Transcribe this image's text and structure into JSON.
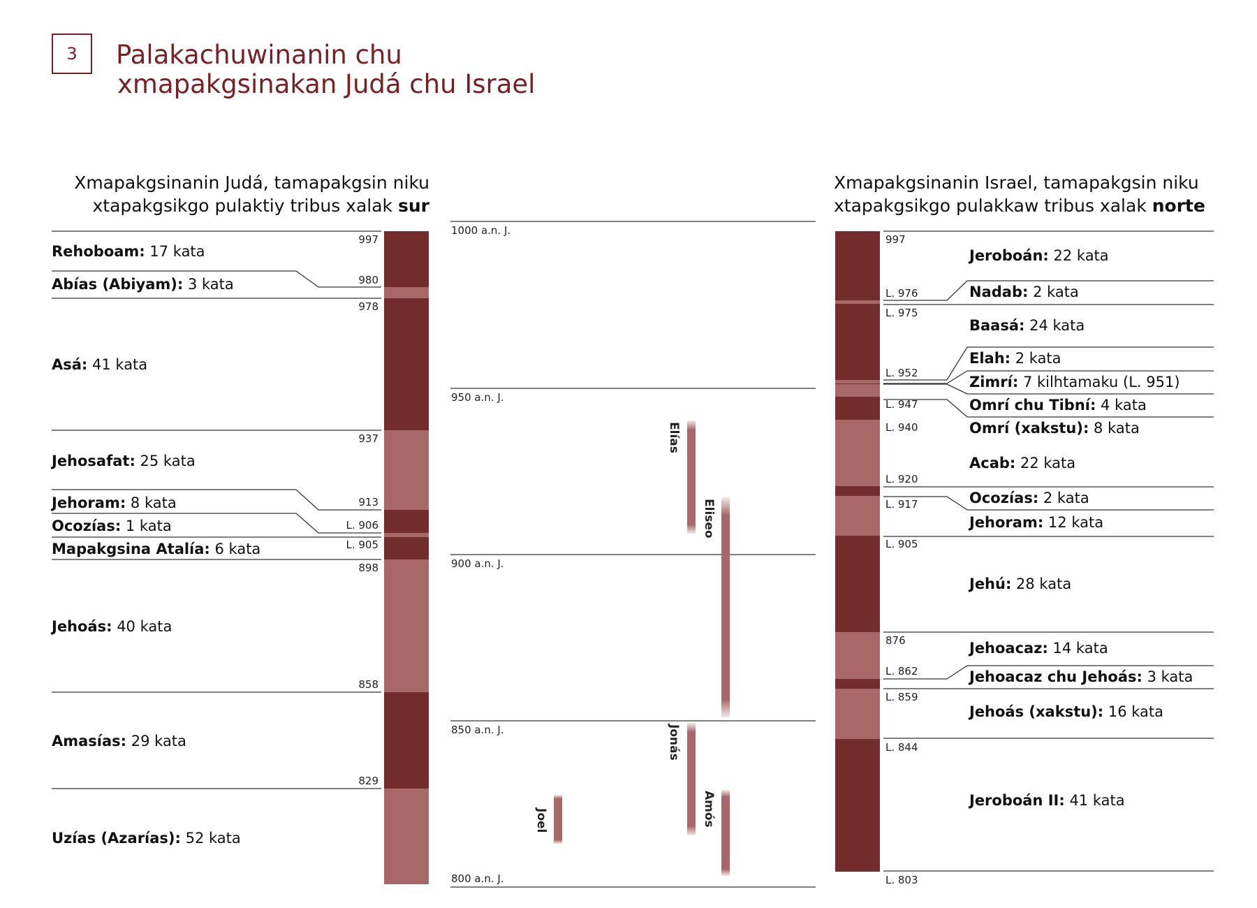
{
  "header": {
    "number": "3",
    "title_line1": "Palakachuwinanin chu",
    "title_line2": "xmapakgsinakan Judá chu Israel"
  },
  "juda": {
    "heading_line1": "Xmapakgsinanin Judá, tamapakgsin niku",
    "heading_line2_prefix": "xtapakgsikgo pulaktiy tribus xalak ",
    "heading_line2_bold": "sur",
    "years": [
      "997",
      "980",
      "978",
      "937",
      "913",
      "L. 906",
      "L. 905",
      "898",
      "858",
      "829"
    ],
    "kings": [
      {
        "name": "Rehoboam:",
        "reign": " 17 kata"
      },
      {
        "name": "Abías (Abiyam):",
        "reign": " 3 kata"
      },
      {
        "name": "Asá:",
        "reign": " 41 kata"
      },
      {
        "name": "Jehosafat:",
        "reign": " 25 kata"
      },
      {
        "name": "Jehoram:",
        "reign": " 8 kata"
      },
      {
        "name": "Ocozías:",
        "reign": " 1 kata"
      },
      {
        "name": "Mapakgsina Atalía:",
        "reign": " 6 kata"
      },
      {
        "name": "Jehoás:",
        "reign": " 40 kata"
      },
      {
        "name": "Amasías:",
        "reign": " 29 kata"
      },
      {
        "name": "Uzías (Azarías):",
        "reign": " 52 kata"
      }
    ]
  },
  "israel": {
    "heading_line1": "Xmapakgsinanin Israel, tamapakgsin niku",
    "heading_line2_prefix": "xtapakgsikgo pulakkaw tribus xalak ",
    "heading_line2_bold": "norte",
    "years": [
      "997",
      "L. 976",
      "L. 975",
      "L. 952",
      "L. 947",
      "L. 940",
      "L. 920",
      "L. 917",
      "L. 905",
      "876",
      "L. 862",
      "L. 859",
      "L. 844",
      "L. 803"
    ],
    "kings": [
      {
        "name": "Jeroboán:",
        "reign": " 22 kata"
      },
      {
        "name": "Nadab:",
        "reign": " 2 kata"
      },
      {
        "name": "Baasá:",
        "reign": " 24 kata"
      },
      {
        "name": "Elah:",
        "reign": " 2 kata"
      },
      {
        "name": "Zimrí:",
        "reign": " 7 kilhtamaku (L. 951)"
      },
      {
        "name": "Omrí chu Tibní:",
        "reign": " 4 kata"
      },
      {
        "name": "Omrí (xakstu):",
        "reign": " 8 kata"
      },
      {
        "name": "Acab:",
        "reign": " 22 kata"
      },
      {
        "name": "Ocozías:",
        "reign": " 2 kata"
      },
      {
        "name": "Jehoram:",
        "reign": " 12 kata"
      },
      {
        "name": "Jehú:",
        "reign": " 28 kata"
      },
      {
        "name": "Jehoacaz:",
        "reign": " 14 kata"
      },
      {
        "name": "Jehoacaz chu Jehoás:",
        "reign": " 3 kata"
      },
      {
        "name": "Jehoás (xakstu):",
        "reign": " 16 kata"
      },
      {
        "name": "Jeroboán II:",
        "reign": " 41 kata"
      }
    ]
  },
  "timeline": {
    "ticks": [
      "1000 a.n. J.",
      "950 a.n. J.",
      "900 a.n. J.",
      "850 a.n. J.",
      "800 a.n. J."
    ],
    "prophets": [
      "Elías",
      "Eliseo",
      "Jonás",
      "Amós",
      "Joel"
    ]
  },
  "colors": {
    "dark": "#732c2c",
    "light": "#a96868",
    "title": "#7a1f22"
  }
}
